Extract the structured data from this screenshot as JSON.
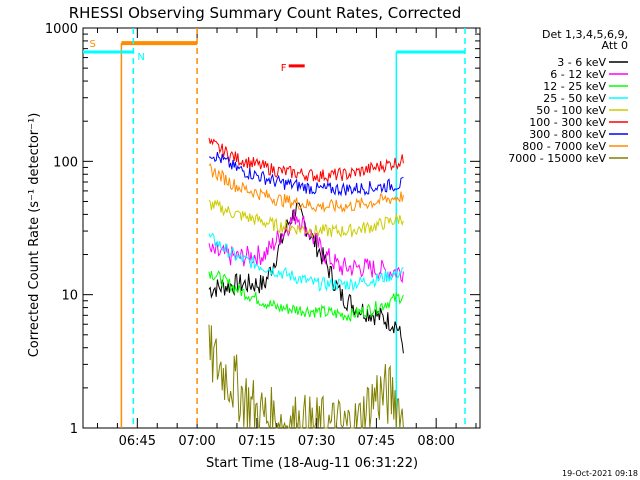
{
  "chart_data": {
    "type": "line",
    "title": "RHESSI Observing Summary Count Rates, Corrected",
    "xlabel": "Start Time (18-Aug-11 06:31:22)",
    "ylabel": "Corrected Count Rate (s⁻¹ detector⁻¹)",
    "yscale": "log",
    "ylim": [
      1,
      1000
    ],
    "xlim_minutes": [
      "06:31:22",
      "08:11:00"
    ],
    "x_ticks": [
      "06:45",
      "07:00",
      "07:15",
      "07:30",
      "07:45",
      "08:00"
    ],
    "y_ticks": [
      "1",
      "10",
      "100",
      "1000"
    ],
    "grid": false,
    "legend_placement": "right",
    "legend_header": [
      "Det 1,3,4,5,6,9,",
      "Att 0"
    ],
    "timestamp": "19-Oct-2021 09:18",
    "series": [
      {
        "name": "3 - 6 keV",
        "color": "#000000",
        "x": [
          "07:03",
          "07:10",
          "07:17",
          "07:20",
          "07:23",
          "07:25",
          "07:28",
          "07:32",
          "07:36",
          "07:40",
          "07:45",
          "07:50",
          "07:52"
        ],
        "y": [
          11,
          12,
          12,
          20,
          35,
          44,
          30,
          18,
          10,
          8,
          7,
          6,
          4
        ]
      },
      {
        "name": "6 - 12 keV",
        "color": "#ff00ff",
        "x": [
          "07:03",
          "07:10",
          "07:17",
          "07:21",
          "07:25",
          "07:28",
          "07:32",
          "07:36",
          "07:42",
          "07:48",
          "07:52"
        ],
        "y": [
          21,
          19,
          20,
          28,
          40,
          30,
          20,
          16,
          16,
          15,
          15
        ]
      },
      {
        "name": "12 - 25 keV",
        "color": "#00ff00",
        "x": [
          "07:03",
          "07:10",
          "07:20",
          "07:30",
          "07:38",
          "07:45",
          "07:52"
        ],
        "y": [
          15,
          11,
          8,
          7.5,
          7,
          8,
          10
        ]
      },
      {
        "name": "25 - 50 keV",
        "color": "#00ffff",
        "x": [
          "07:03",
          "07:10",
          "07:20",
          "07:30",
          "07:38",
          "07:45",
          "07:52"
        ],
        "y": [
          27,
          19,
          15,
          12,
          12,
          13,
          15
        ]
      },
      {
        "name": "50 - 100 keV",
        "color": "#cccc00",
        "x": [
          "07:03",
          "07:10",
          "07:20",
          "07:30",
          "07:38",
          "07:45",
          "07:52"
        ],
        "y": [
          48,
          40,
          33,
          30,
          30,
          33,
          38
        ]
      },
      {
        "name": "100 - 300 keV",
        "color": "#ff0000",
        "x": [
          "07:03",
          "07:10",
          "07:20",
          "07:30",
          "07:38",
          "07:45",
          "07:52"
        ],
        "y": [
          138,
          105,
          85,
          78,
          80,
          90,
          102
        ]
      },
      {
        "name": "300 - 800 keV",
        "color": "#0000ff",
        "x": [
          "07:03",
          "07:10",
          "07:20",
          "07:30",
          "07:38",
          "07:45",
          "07:52"
        ],
        "y": [
          118,
          88,
          70,
          62,
          62,
          64,
          68
        ]
      },
      {
        "name": "800 - 7000 keV",
        "color": "#ff8c00",
        "x": [
          "07:03",
          "07:10",
          "07:20",
          "07:30",
          "07:38",
          "07:45",
          "07:52"
        ],
        "y": [
          88,
          65,
          52,
          46,
          46,
          50,
          55
        ]
      },
      {
        "name": "7000 - 15000 keV",
        "color": "#808000",
        "x": [
          "07:03",
          "07:06",
          "07:09",
          "07:12",
          "07:15",
          "07:20",
          "07:30",
          "07:40",
          "07:45",
          "07:50",
          "07:52"
        ],
        "y": [
          3.5,
          2.8,
          2.2,
          1.7,
          1.3,
          1.1,
          1.0,
          1.0,
          1.8,
          1.7,
          1.0
        ]
      }
    ],
    "annotations": [
      {
        "label": "S",
        "color": "#ff8c00"
      },
      {
        "label": "N",
        "color": "#00ffff"
      },
      {
        "label": "F",
        "color": "#ff0000"
      }
    ]
  }
}
